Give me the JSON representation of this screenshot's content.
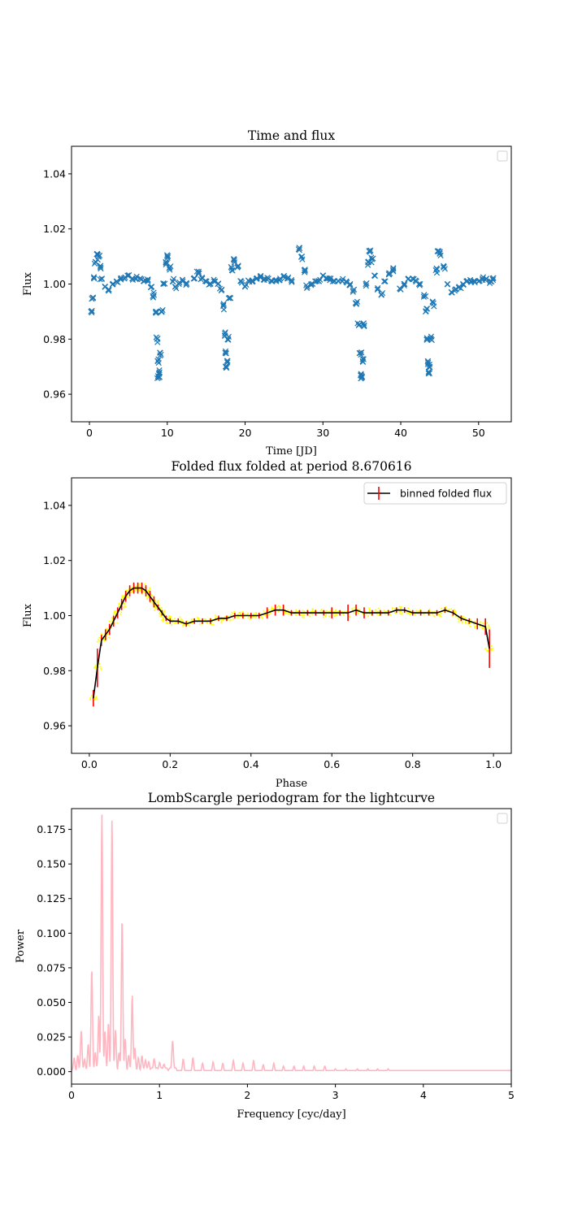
{
  "chart_data": [
    {
      "type": "scatter",
      "title": "Time and flux",
      "xlabel": "Time [JD]",
      "ylabel": "Flux",
      "xlim": [
        -2.3,
        54.2
      ],
      "ylim": [
        0.95,
        1.05
      ],
      "xticks": [
        "0",
        "10",
        "20",
        "30",
        "40",
        "50"
      ],
      "yticks": [
        "0.96",
        "0.98",
        "1.00",
        "1.02",
        "1.04"
      ],
      "legend": {
        "placement": "top-right",
        "entries": []
      },
      "marker": "x",
      "series": [
        {
          "color": "#1f77b4",
          "x": [
            0.2,
            0.4,
            0.6,
            0.8,
            1.0,
            1.2,
            1.4,
            1.6,
            2.0,
            2.5,
            3.0,
            3.5,
            4.0,
            4.5,
            5.0,
            5.5,
            6.0,
            6.5,
            7.0,
            7.5,
            8.0,
            8.3,
            8.6,
            8.7,
            8.8,
            8.9,
            9.0,
            9.1,
            9.3,
            9.5,
            9.8,
            10.0,
            10.3,
            10.7,
            11.0,
            11.5,
            12.0,
            12.5,
            13.5,
            14.0,
            14.5,
            15.0,
            15.5,
            16.0,
            16.5,
            17.0,
            17.2,
            17.4,
            17.5,
            17.6,
            17.7,
            17.8,
            18.0,
            18.3,
            18.6,
            19.0,
            19.5,
            20.0,
            20.5,
            21.0,
            21.5,
            22.0,
            22.5,
            23.0,
            23.5,
            24.0,
            24.5,
            25.0,
            25.5,
            26.0,
            27.0,
            27.3,
            27.6,
            28.0,
            28.5,
            29.0,
            29.5,
            30.0,
            30.5,
            31.0,
            31.5,
            32.0,
            32.5,
            33.0,
            33.5,
            34.0,
            34.3,
            34.6,
            34.8,
            34.9,
            35.0,
            35.1,
            35.3,
            35.5,
            35.8,
            36.0,
            36.3,
            36.7,
            37.0,
            37.5,
            38.0,
            38.5,
            39.0,
            40.0,
            40.5,
            41.0,
            41.5,
            42.0,
            42.5,
            43.0,
            43.2,
            43.4,
            43.5,
            43.6,
            43.7,
            43.9,
            44.2,
            44.5,
            44.8,
            45.0,
            45.5,
            46.0,
            46.5,
            47.0,
            47.5,
            48.0,
            48.5,
            49.0,
            49.5,
            50.0,
            50.5,
            51.0,
            51.5,
            51.8
          ],
          "y": [
            0.99,
            0.995,
            1.002,
            1.008,
            1.011,
            1.01,
            1.006,
            1.002,
            0.999,
            0.998,
            1.0,
            1.001,
            1.002,
            1.002,
            1.003,
            1.002,
            1.002,
            1.002,
            1.001,
            1.001,
            0.999,
            0.996,
            0.99,
            0.98,
            0.972,
            0.966,
            0.968,
            0.975,
            0.99,
            1.0,
            1.008,
            1.01,
            1.006,
            1.001,
            0.999,
            1.0,
            1.001,
            1.0,
            1.002,
            1.004,
            1.002,
            1.001,
            1.0,
            1.001,
            1.0,
            0.998,
            0.992,
            0.982,
            0.975,
            0.97,
            0.972,
            0.98,
            0.995,
            1.005,
            1.009,
            1.006,
            1.001,
            0.999,
            1.001,
            1.001,
            1.002,
            1.003,
            1.002,
            1.002,
            1.001,
            1.001,
            1.002,
            1.003,
            1.002,
            1.001,
            1.013,
            1.01,
            1.005,
            0.999,
            1.0,
            1.001,
            1.001,
            1.003,
            1.002,
            1.002,
            1.001,
            1.001,
            1.001,
            1.001,
            1.0,
            0.998,
            0.993,
            0.985,
            0.975,
            0.967,
            0.966,
            0.972,
            0.985,
            1.0,
            1.008,
            1.012,
            1.009,
            1.003,
            0.998,
            0.996,
            1.001,
            1.004,
            1.005,
            0.998,
            1.0,
            1.002,
            1.002,
            1.001,
            1.0,
            0.996,
            0.99,
            0.98,
            0.972,
            0.968,
            0.97,
            0.98,
            0.993,
            1.005,
            1.012,
            1.011,
            1.006,
            1.0,
            0.997,
            0.998,
            0.999,
            1.0,
            1.001,
            1.001,
            1.001,
            1.001,
            1.002,
            1.002,
            1.001,
            1.002
          ]
        }
      ]
    },
    {
      "type": "line",
      "title": "Folded flux folded at period 8.670616",
      "xlabel": "Phase",
      "ylabel": "Flux",
      "xlim": [
        -0.044,
        1.044
      ],
      "ylim": [
        0.95,
        1.05
      ],
      "xticks": [
        "0.0",
        "0.2",
        "0.4",
        "0.6",
        "0.8",
        "1.0"
      ],
      "yticks": [
        "0.96",
        "0.98",
        "1.00",
        "1.02",
        "1.04"
      ],
      "legend": {
        "placement": "top-right",
        "entries": [
          "binned folded flux"
        ]
      },
      "colors": {
        "points": "#ffff00",
        "line": "#000000",
        "errorbars": "#ff0000"
      },
      "series": [
        {
          "name": "binned folded flux",
          "x": [
            0.01,
            0.02,
            0.03,
            0.04,
            0.05,
            0.06,
            0.07,
            0.08,
            0.09,
            0.1,
            0.11,
            0.12,
            0.13,
            0.14,
            0.15,
            0.16,
            0.17,
            0.18,
            0.19,
            0.2,
            0.22,
            0.24,
            0.26,
            0.28,
            0.3,
            0.32,
            0.34,
            0.36,
            0.38,
            0.4,
            0.42,
            0.44,
            0.46,
            0.48,
            0.5,
            0.52,
            0.54,
            0.56,
            0.58,
            0.6,
            0.62,
            0.64,
            0.66,
            0.68,
            0.7,
            0.72,
            0.74,
            0.76,
            0.78,
            0.8,
            0.82,
            0.84,
            0.86,
            0.88,
            0.9,
            0.92,
            0.94,
            0.96,
            0.98,
            0.99
          ],
          "y": [
            0.97,
            0.981,
            0.991,
            0.993,
            0.995,
            0.998,
            1.001,
            1.004,
            1.007,
            1.009,
            1.01,
            1.01,
            1.01,
            1.009,
            1.007,
            1.005,
            1.003,
            1.001,
            0.999,
            0.998,
            0.998,
            0.997,
            0.998,
            0.998,
            0.998,
            0.999,
            0.999,
            1.0,
            1.0,
            1.0,
            1.0,
            1.001,
            1.002,
            1.002,
            1.001,
            1.001,
            1.001,
            1.001,
            1.001,
            1.001,
            1.001,
            1.001,
            1.002,
            1.001,
            1.001,
            1.001,
            1.001,
            1.002,
            1.002,
            1.001,
            1.001,
            1.001,
            1.001,
            1.002,
            1.001,
            0.999,
            0.998,
            0.997,
            0.996,
            0.988
          ],
          "yerr": [
            0.003,
            0.007,
            0.002,
            0.002,
            0.002,
            0.002,
            0.002,
            0.002,
            0.002,
            0.002,
            0.002,
            0.002,
            0.002,
            0.002,
            0.002,
            0.002,
            0.001,
            0.001,
            0.001,
            0.001,
            0.001,
            0.001,
            0.001,
            0.001,
            0.001,
            0.001,
            0.001,
            0.001,
            0.001,
            0.001,
            0.001,
            0.002,
            0.002,
            0.002,
            0.001,
            0.001,
            0.001,
            0.001,
            0.001,
            0.002,
            0.001,
            0.003,
            0.002,
            0.002,
            0.001,
            0.001,
            0.001,
            0.001,
            0.001,
            0.001,
            0.001,
            0.001,
            0.001,
            0.001,
            0.001,
            0.001,
            0.001,
            0.002,
            0.003,
            0.007
          ]
        }
      ]
    },
    {
      "type": "line",
      "title": "LombScargle periodogram for the lightcurve",
      "xlabel": "Frequency [cyc/day]",
      "ylabel": "Power",
      "xlim": [
        0,
        5
      ],
      "ylim": [
        -0.009,
        0.19
      ],
      "xticks": [
        "0",
        "1",
        "2",
        "3",
        "4",
        "5"
      ],
      "yticks": [
        "0.000",
        "0.025",
        "0.050",
        "0.075",
        "0.100",
        "0.125",
        "0.150",
        "0.175"
      ],
      "legend": {
        "placement": "top-right",
        "entries": []
      },
      "series": [
        {
          "color": "#ffb6c1",
          "peaks": [
            {
              "f": 0.03,
              "p": 0.008
            },
            {
              "f": 0.07,
              "p": 0.01
            },
            {
              "f": 0.11,
              "p": 0.029
            },
            {
              "f": 0.15,
              "p": 0.008
            },
            {
              "f": 0.19,
              "p": 0.018
            },
            {
              "f": 0.23,
              "p": 0.072
            },
            {
              "f": 0.27,
              "p": 0.013
            },
            {
              "f": 0.31,
              "p": 0.04
            },
            {
              "f": 0.345,
              "p": 0.184
            },
            {
              "f": 0.38,
              "p": 0.028
            },
            {
              "f": 0.42,
              "p": 0.035
            },
            {
              "f": 0.46,
              "p": 0.181
            },
            {
              "f": 0.5,
              "p": 0.028
            },
            {
              "f": 0.54,
              "p": 0.012
            },
            {
              "f": 0.575,
              "p": 0.11
            },
            {
              "f": 0.61,
              "p": 0.022
            },
            {
              "f": 0.65,
              "p": 0.01
            },
            {
              "f": 0.69,
              "p": 0.054
            },
            {
              "f": 0.72,
              "p": 0.016
            },
            {
              "f": 0.76,
              "p": 0.008
            },
            {
              "f": 0.8,
              "p": 0.01
            },
            {
              "f": 0.84,
              "p": 0.008
            },
            {
              "f": 0.88,
              "p": 0.006
            },
            {
              "f": 0.94,
              "p": 0.009
            },
            {
              "f": 1.0,
              "p": 0.006
            },
            {
              "f": 1.05,
              "p": 0.005
            },
            {
              "f": 1.15,
              "p": 0.022
            },
            {
              "f": 1.27,
              "p": 0.009
            },
            {
              "f": 1.38,
              "p": 0.01
            },
            {
              "f": 1.49,
              "p": 0.006
            },
            {
              "f": 1.61,
              "p": 0.007
            },
            {
              "f": 1.72,
              "p": 0.006
            },
            {
              "f": 1.84,
              "p": 0.008
            },
            {
              "f": 1.95,
              "p": 0.006
            },
            {
              "f": 2.07,
              "p": 0.008
            },
            {
              "f": 2.18,
              "p": 0.005
            },
            {
              "f": 2.3,
              "p": 0.006
            },
            {
              "f": 2.41,
              "p": 0.004
            },
            {
              "f": 2.53,
              "p": 0.004
            },
            {
              "f": 2.64,
              "p": 0.004
            },
            {
              "f": 2.76,
              "p": 0.004
            },
            {
              "f": 2.88,
              "p": 0.004
            },
            {
              "f": 3.0,
              "p": 0.002
            },
            {
              "f": 3.12,
              "p": 0.002
            },
            {
              "f": 3.25,
              "p": 0.002
            },
            {
              "f": 3.37,
              "p": 0.002
            },
            {
              "f": 3.48,
              "p": 0.002
            },
            {
              "f": 3.6,
              "p": 0.002
            }
          ]
        }
      ]
    }
  ]
}
